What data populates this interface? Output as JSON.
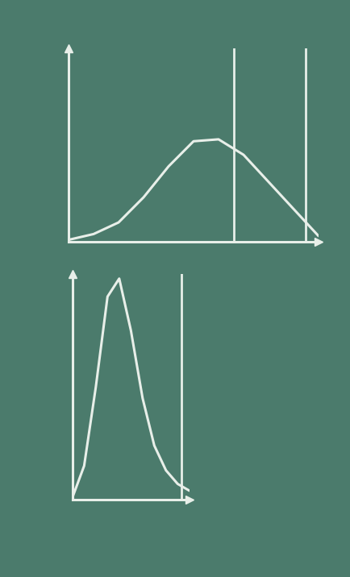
{
  "chart_data": [
    {
      "type": "line",
      "x": [
        0,
        1,
        2,
        3,
        4,
        5,
        6,
        7,
        8,
        9,
        10
      ],
      "values": [
        0.1,
        0.4,
        1.0,
        2.3,
        3.9,
        5.2,
        5.3,
        4.5,
        3.1,
        1.7,
        0.3
      ],
      "xlim": [
        0,
        10
      ],
      "ylim": [
        0,
        10
      ],
      "vlines": [
        6.6,
        9.5
      ],
      "color": "#e8efe9",
      "tick_labels": false
    },
    {
      "type": "line",
      "x": [
        0,
        1,
        2,
        3,
        4,
        5,
        6,
        7,
        8,
        9,
        10
      ],
      "values": [
        0.1,
        1.5,
        5.0,
        9.0,
        9.8,
        7.5,
        4.5,
        2.4,
        1.3,
        0.7,
        0.4
      ],
      "xlim": [
        0,
        10
      ],
      "ylim": [
        0,
        10
      ],
      "vlines": [
        9.3
      ],
      "color": "#e8efe9",
      "tick_labels": false
    }
  ]
}
